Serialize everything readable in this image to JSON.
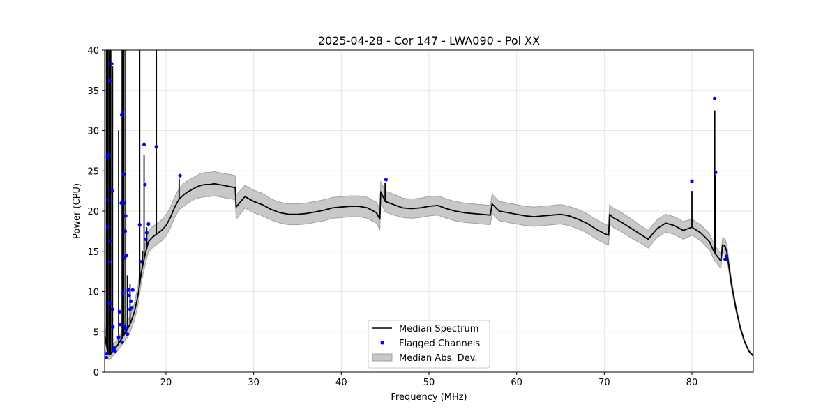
{
  "chart_data": {
    "type": "line",
    "title": "2025-04-28 - Cor 147 - LWA090 - Pol XX",
    "xlabel": "Frequency (MHz)",
    "ylabel": "Power (CPU)",
    "xlim": [
      13,
      87
    ],
    "ylim": [
      0,
      40
    ],
    "xticks": [
      20,
      30,
      40,
      50,
      60,
      70,
      80
    ],
    "yticks": [
      0,
      5,
      10,
      15,
      20,
      25,
      30,
      35,
      40
    ],
    "grid": true,
    "legend_position": "lower-center",
    "colors": {
      "median": "#000000",
      "flagged": "#0000ff",
      "mad_fill": "#c8c8c8",
      "mad_edge": "#a0a0a0",
      "grid": "#e6e6e6"
    },
    "legend": [
      {
        "label": "Median Spectrum",
        "kind": "line"
      },
      {
        "label": "Flagged Channels",
        "kind": "marker"
      },
      {
        "label": "Median Abs. Dev.",
        "kind": "patch"
      }
    ],
    "series": [
      {
        "name": "Median Spectrum",
        "x": [
          13.0,
          13.4,
          13.6,
          13.8,
          14.0,
          14.4,
          14.8,
          15.2,
          15.6,
          16.0,
          16.4,
          16.8,
          17.2,
          17.6,
          18.0,
          18.5,
          19.0,
          19.5,
          20.0,
          20.5,
          21.0,
          21.5,
          22.0,
          22.5,
          23.0,
          23.5,
          24.0,
          24.5,
          25.0,
          25.5,
          26.0,
          26.5,
          27.0,
          27.5,
          27.9,
          28.0,
          29.0,
          30.0,
          31.0,
          32.0,
          33.0,
          34.0,
          35.0,
          36.0,
          37.0,
          38.0,
          39.0,
          40.0,
          41.0,
          42.0,
          43.0,
          44.0,
          44.4,
          44.5,
          45.0,
          46.0,
          47.0,
          48.0,
          49.0,
          50.0,
          51.0,
          52.0,
          53.0,
          54.0,
          55.0,
          56.0,
          57.0,
          57.2,
          58.0,
          59.0,
          60.0,
          61.0,
          62.0,
          63.0,
          64.0,
          65.0,
          66.0,
          67.0,
          68.0,
          69.0,
          70.0,
          70.5,
          70.6,
          71.0,
          72.0,
          73.0,
          74.0,
          75.0,
          76.0,
          77.0,
          78.0,
          79.0,
          80.0,
          81.0,
          82.0,
          82.5,
          83.0,
          83.3,
          83.5,
          83.8,
          84.0,
          84.5,
          85.0,
          85.5,
          86.0,
          86.5,
          87.0
        ],
        "y": [
          4.5,
          2.2,
          2.1,
          2.4,
          2.8,
          3.2,
          3.9,
          4.6,
          5.3,
          6.2,
          7.5,
          9.5,
          12.5,
          14.5,
          16.2,
          16.8,
          17.2,
          17.6,
          18.2,
          19.2,
          20.5,
          21.5,
          22.0,
          22.4,
          22.7,
          23.0,
          23.2,
          23.3,
          23.3,
          23.4,
          23.3,
          23.2,
          23.1,
          23.0,
          22.9,
          20.5,
          21.8,
          21.2,
          20.8,
          20.2,
          19.8,
          19.6,
          19.6,
          19.7,
          19.9,
          20.1,
          20.4,
          20.5,
          20.6,
          20.6,
          20.4,
          19.8,
          19.0,
          22.4,
          21.2,
          20.8,
          20.4,
          20.3,
          20.4,
          20.6,
          20.7,
          20.3,
          20.0,
          19.8,
          19.7,
          19.6,
          19.5,
          20.9,
          20.0,
          19.8,
          19.6,
          19.4,
          19.3,
          19.4,
          19.5,
          19.6,
          19.4,
          19.0,
          18.5,
          17.8,
          17.2,
          17.0,
          19.6,
          19.2,
          18.6,
          17.9,
          17.2,
          16.5,
          17.8,
          18.5,
          18.2,
          17.6,
          18.0,
          17.3,
          16.2,
          15.0,
          14.2,
          13.8,
          15.8,
          15.6,
          14.8,
          11.0,
          8.0,
          5.6,
          3.8,
          2.6,
          2.0
        ],
        "mad": [
          1.5,
          0.6,
          0.6,
          0.6,
          0.7,
          0.7,
          0.8,
          0.9,
          1.0,
          1.0,
          1.1,
          1.2,
          1.3,
          1.3,
          1.3,
          1.3,
          1.3,
          1.3,
          1.3,
          1.3,
          1.3,
          1.3,
          1.4,
          1.4,
          1.4,
          1.4,
          1.5,
          1.5,
          1.5,
          1.5,
          1.5,
          1.5,
          1.5,
          1.5,
          1.5,
          1.5,
          1.4,
          1.4,
          1.4,
          1.3,
          1.3,
          1.3,
          1.3,
          1.3,
          1.3,
          1.3,
          1.3,
          1.3,
          1.3,
          1.3,
          1.3,
          1.3,
          1.3,
          1.3,
          1.3,
          1.3,
          1.2,
          1.2,
          1.2,
          1.2,
          1.2,
          1.2,
          1.2,
          1.2,
          1.2,
          1.2,
          1.2,
          1.2,
          1.2,
          1.2,
          1.2,
          1.2,
          1.2,
          1.2,
          1.2,
          1.2,
          1.2,
          1.2,
          1.2,
          1.2,
          1.2,
          1.2,
          1.2,
          1.2,
          1.2,
          1.2,
          1.1,
          1.1,
          1.1,
          1.1,
          1.1,
          1.1,
          1.0,
          1.0,
          1.0,
          1.0,
          0.9,
          0.9,
          0.9,
          0.9,
          0.8,
          0.6,
          0.4,
          0.3,
          0.2,
          0.1,
          0.1
        ]
      },
      {
        "name": "Median Spectrum spikes",
        "spikes": [
          [
            13.2,
            40
          ],
          [
            13.35,
            40
          ],
          [
            13.5,
            40
          ],
          [
            13.7,
            40
          ],
          [
            13.9,
            38
          ],
          [
            14.6,
            30
          ],
          [
            15.0,
            40
          ],
          [
            15.2,
            40
          ],
          [
            15.4,
            40
          ],
          [
            15.6,
            12
          ],
          [
            15.9,
            11
          ],
          [
            17.0,
            40
          ],
          [
            17.3,
            15
          ],
          [
            17.5,
            27
          ],
          [
            17.8,
            18
          ],
          [
            18.9,
            40
          ],
          [
            21.5,
            24
          ],
          [
            45.0,
            23.5
          ],
          [
            80.0,
            22.5
          ],
          [
            82.6,
            32.5
          ],
          [
            82.7,
            24.5
          ]
        ]
      },
      {
        "name": "Flagged Channels",
        "x": [
          13.2,
          13.25,
          13.3,
          13.35,
          13.4,
          13.45,
          13.5,
          13.55,
          13.6,
          13.65,
          13.7,
          13.8,
          13.85,
          13.9,
          13.95,
          14.0,
          14.1,
          14.2,
          14.6,
          14.7,
          14.8,
          14.9,
          14.95,
          15.0,
          15.05,
          15.1,
          15.15,
          15.2,
          15.25,
          15.3,
          15.35,
          15.4,
          15.45,
          15.5,
          15.6,
          15.7,
          15.8,
          15.9,
          16.0,
          16.1,
          16.2,
          17.0,
          17.1,
          17.5,
          17.6,
          17.7,
          17.8,
          18.0,
          18.9,
          21.6,
          45.1,
          80.0,
          82.6,
          82.7,
          83.8,
          83.9
        ],
        "y": [
          1.8,
          2.3,
          26.7,
          18.0,
          21.4,
          8.6,
          27.0,
          13.7,
          36.2,
          8.5,
          16.3,
          38.3,
          22.5,
          7.8,
          5.6,
          2.7,
          3.0,
          2.6,
          4.3,
          7.5,
          5.9,
          21.0,
          32.0,
          3.7,
          32.3,
          9.8,
          24.6,
          21.0,
          5.7,
          14.2,
          17.5,
          19.4,
          5.4,
          14.5,
          4.7,
          10.2,
          9.5,
          7.8,
          8.8,
          8.0,
          10.2,
          18.3,
          13.7,
          28.3,
          23.3,
          16.5,
          17.3,
          18.4,
          28.0,
          24.4,
          23.9,
          23.7,
          34.0,
          24.8,
          14.0,
          14.4
        ]
      }
    ]
  }
}
